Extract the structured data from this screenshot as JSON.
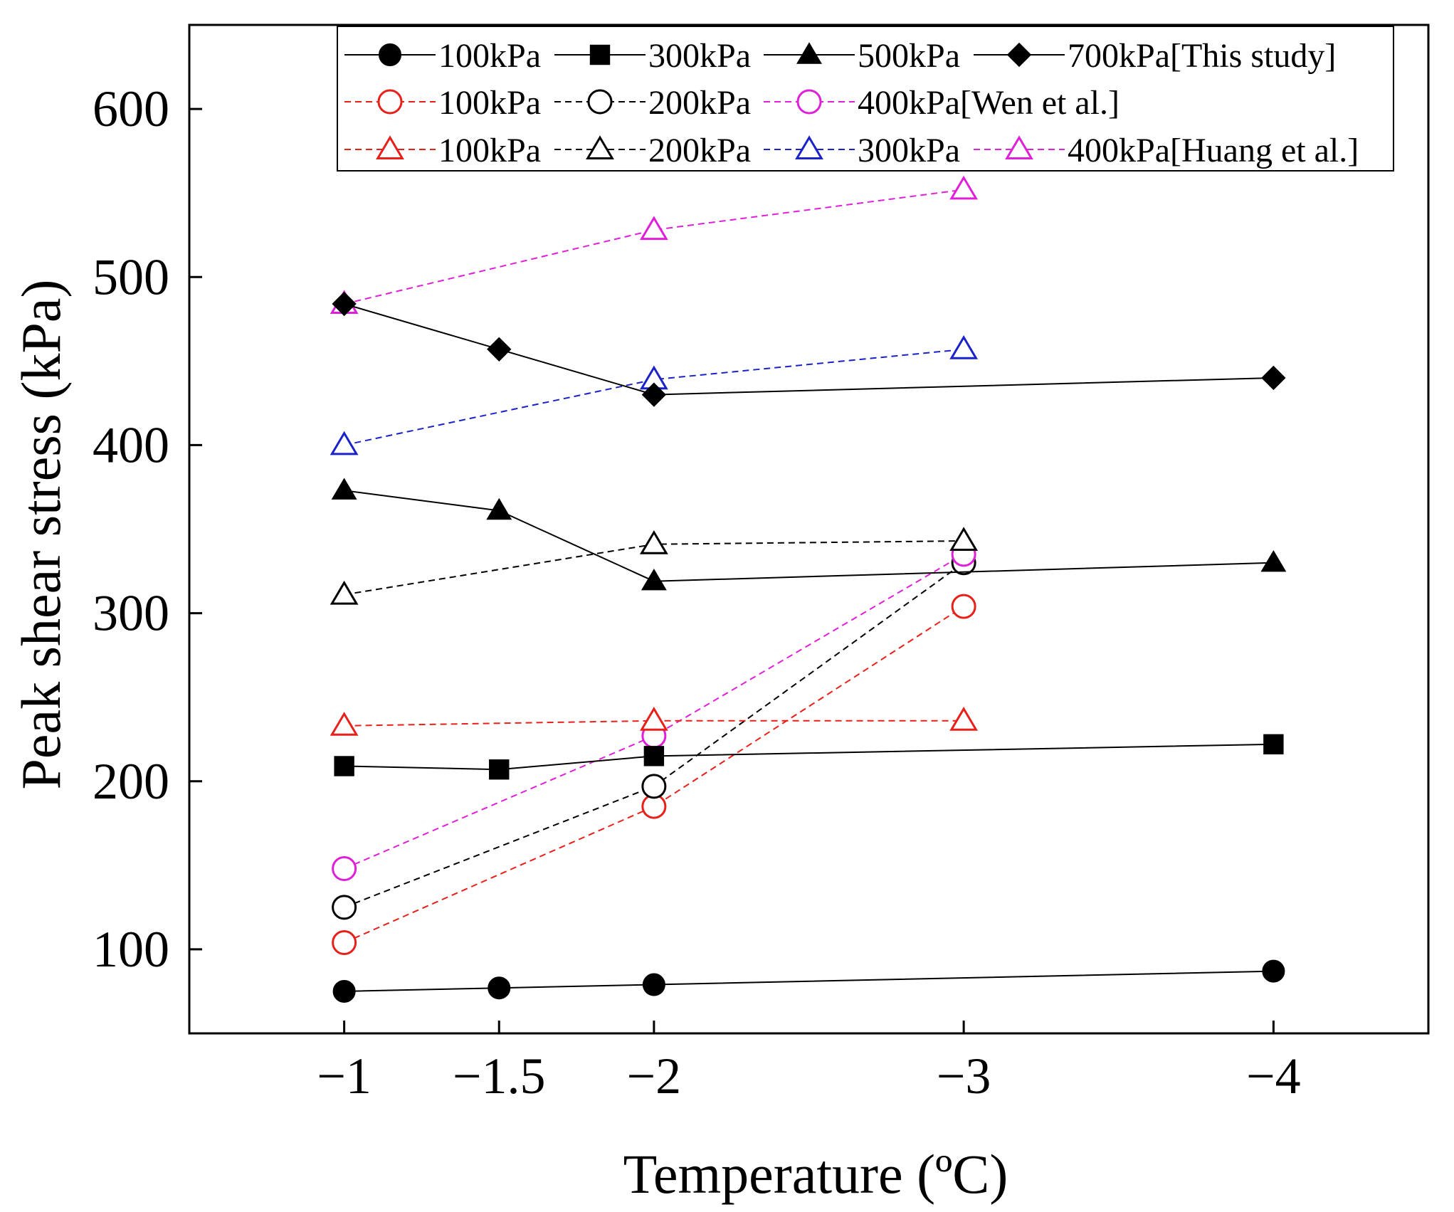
{
  "chart_data": {
    "type": "line",
    "title": "",
    "xlabel": "Temperature (ºC)",
    "ylabel": "Peak shear stress (kPa)",
    "x_categories": [
      "−1",
      "−1.5",
      "−2",
      "−3",
      "−4"
    ],
    "x_positions": [
      -1,
      -1.5,
      -2,
      -3,
      -4
    ],
    "xlim": [
      -0.5,
      -4.5
    ],
    "ylim": [
      50,
      650
    ],
    "yticks": [
      100,
      200,
      300,
      400,
      500,
      600
    ],
    "ytick_labels": [
      "100",
      "200",
      "300",
      "400",
      "500",
      "600"
    ],
    "legend_position": "top",
    "legend_rows": [
      {
        "suffix": "[This study]"
      },
      {
        "suffix": "[Wen et al.]"
      },
      {
        "suffix": "[Huang et al.]"
      }
    ],
    "series": [
      {
        "name": "100kPa",
        "group": "This study",
        "legend_text": "100kPa",
        "color": "#000000",
        "marker": "circle",
        "filled": true,
        "dashed": false,
        "points": [
          [
            -1,
            75
          ],
          [
            -1.5,
            77
          ],
          [
            -2,
            79
          ],
          [
            -4,
            87
          ]
        ]
      },
      {
        "name": "300kPa",
        "group": "This study",
        "legend_text": "300kPa",
        "color": "#000000",
        "marker": "square",
        "filled": true,
        "dashed": false,
        "points": [
          [
            -1,
            209
          ],
          [
            -1.5,
            207
          ],
          [
            -2,
            215
          ],
          [
            -4,
            222
          ]
        ]
      },
      {
        "name": "500kPa",
        "group": "This study",
        "legend_text": "500kPa",
        "color": "#000000",
        "marker": "triangle",
        "filled": true,
        "dashed": false,
        "points": [
          [
            -1,
            373
          ],
          [
            -1.5,
            361
          ],
          [
            -2,
            319
          ],
          [
            -4,
            330
          ]
        ]
      },
      {
        "name": "700kPa",
        "group": "This study",
        "legend_text": "700kPa[This study]",
        "color": "#000000",
        "marker": "diamond",
        "filled": true,
        "dashed": false,
        "points": [
          [
            -1,
            484
          ],
          [
            -1.5,
            457
          ],
          [
            -2,
            430
          ],
          [
            -4,
            440
          ]
        ]
      },
      {
        "name": "100kPa",
        "group": "Wen et al.",
        "legend_text": "100kPa",
        "color": "#e8201a",
        "marker": "circle",
        "filled": false,
        "dashed": true,
        "points": [
          [
            -1,
            104
          ],
          [
            -2,
            185
          ],
          [
            -3,
            304
          ]
        ]
      },
      {
        "name": "200kPa",
        "group": "Wen et al.",
        "legend_text": "200kPa",
        "color": "#000000",
        "marker": "circle",
        "filled": false,
        "dashed": true,
        "points": [
          [
            -1,
            125
          ],
          [
            -2,
            197
          ],
          [
            -3,
            330
          ]
        ]
      },
      {
        "name": "400kPa",
        "group": "Wen et al.",
        "legend_text": "400kPa[Wen et al.]",
        "color": "#e020d8",
        "marker": "circle",
        "filled": false,
        "dashed": true,
        "points": [
          [
            -1,
            148
          ],
          [
            -2,
            227
          ],
          [
            -3,
            335
          ]
        ]
      },
      {
        "name": "100kPa",
        "group": "Huang et al.",
        "legend_text": "100kPa",
        "color": "#e8201a",
        "marker": "triangle",
        "filled": false,
        "dashed": true,
        "points": [
          [
            -1,
            233
          ],
          [
            -2,
            236
          ],
          [
            -3,
            236
          ]
        ]
      },
      {
        "name": "200kPa",
        "group": "Huang et al.",
        "legend_text": "200kPa",
        "color": "#000000",
        "marker": "triangle",
        "filled": false,
        "dashed": true,
        "points": [
          [
            -1,
            311
          ],
          [
            -2,
            341
          ],
          [
            -3,
            343
          ]
        ]
      },
      {
        "name": "300kPa",
        "group": "Huang et al.",
        "legend_text": "300kPa",
        "color": "#1a22c8",
        "marker": "triangle",
        "filled": false,
        "dashed": true,
        "points": [
          [
            -1,
            400
          ],
          [
            -2,
            439
          ],
          [
            -3,
            457
          ]
        ]
      },
      {
        "name": "400kPa",
        "group": "Huang et al.",
        "legend_text": "400kPa[Huang et al.]",
        "color": "#e020d8",
        "marker": "triangle",
        "filled": false,
        "dashed": true,
        "points": [
          [
            -1,
            484
          ],
          [
            -2,
            528
          ],
          [
            -3,
            552
          ]
        ]
      }
    ]
  }
}
